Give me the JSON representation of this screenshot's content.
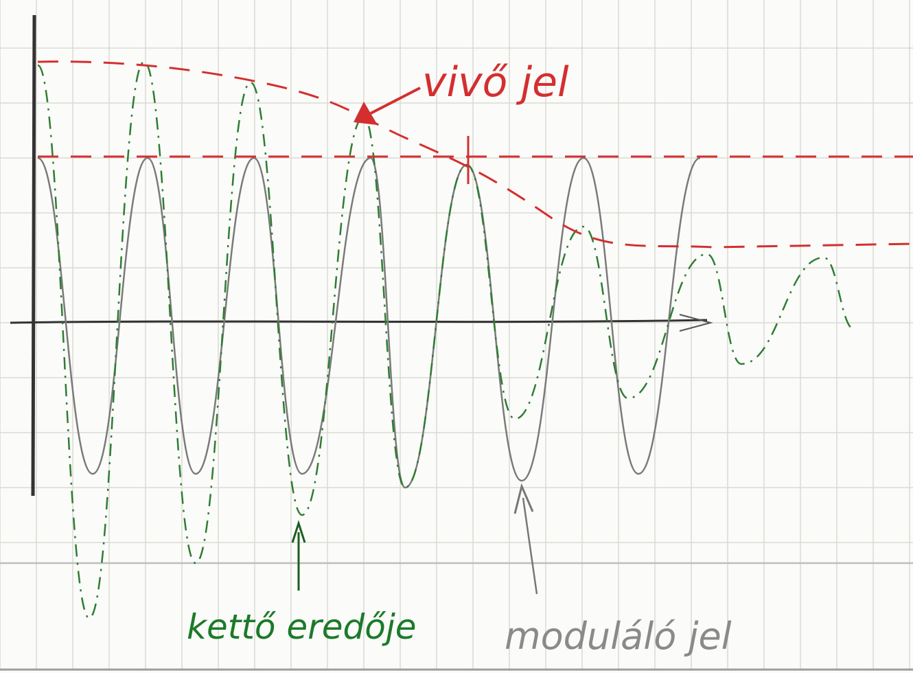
{
  "labels": {
    "carrier": "vivő jel",
    "resultant": "kettő eredője",
    "modulating": "moduláló jel"
  }
}
